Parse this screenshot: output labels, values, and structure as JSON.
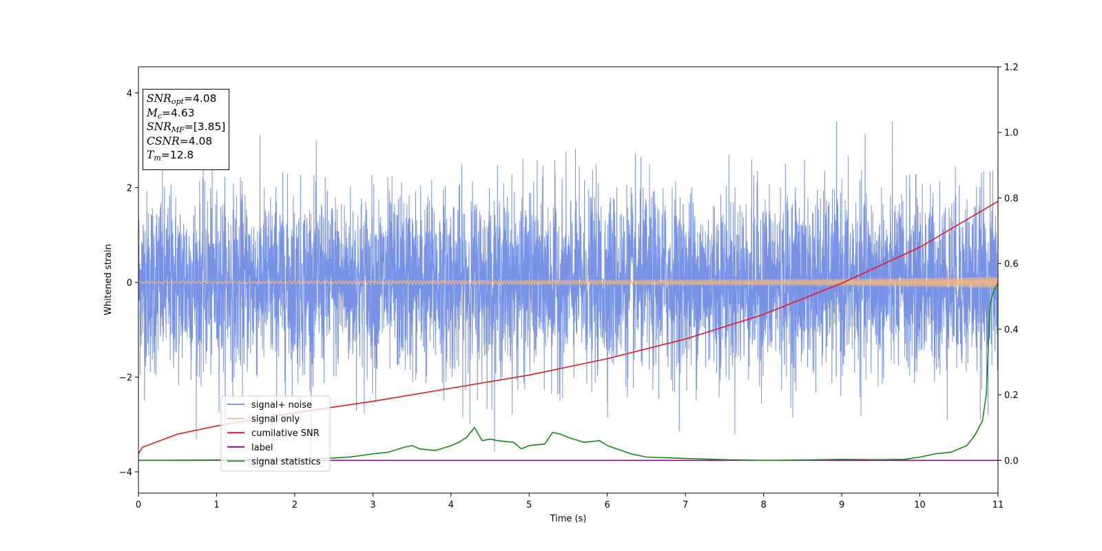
{
  "chart_data": {
    "type": "line",
    "xlabel": "Time (s)",
    "ylabel_left": "Whitened strain",
    "ylabel_right": "",
    "xlim": [
      0,
      11
    ],
    "ylim_left": [
      -4.45,
      4.55
    ],
    "ylim_right": [
      -0.1,
      1.2
    ],
    "xticks": [
      0,
      1,
      2,
      3,
      4,
      5,
      6,
      7,
      8,
      9,
      10,
      11
    ],
    "yticks_left": [
      -4,
      -2,
      0,
      2,
      4
    ],
    "yticks_right": [
      0.0,
      0.2,
      0.4,
      0.6,
      0.8,
      1.0,
      1.2
    ],
    "legend_position": "bottom-left",
    "series": [
      {
        "name": "signal+ noise",
        "axis": "left",
        "color": "#6c8ae4",
        "description_values": {
          "typical_range": [
            -2.5,
            2.5
          ],
          "max": 4.2,
          "min": -4.1
        }
      },
      {
        "name": "signal only",
        "axis": "left",
        "color": "#f5b97a",
        "x": [
          0,
          9,
          11
        ],
        "amplitude": [
          0.02,
          0.06,
          0.11
        ]
      },
      {
        "name": "cumilative SNR",
        "axis": "right",
        "color": "#e8171b",
        "x": [
          0,
          0.05,
          0.5,
          1,
          2,
          3,
          4,
          5,
          6,
          7,
          8,
          9,
          10,
          11
        ],
        "values": [
          0.02,
          0.04,
          0.08,
          0.105,
          0.145,
          0.18,
          0.22,
          0.26,
          0.31,
          0.37,
          0.445,
          0.54,
          0.65,
          0.79
        ]
      },
      {
        "name": "label",
        "axis": "right",
        "color": "#800080",
        "x": [
          0,
          11
        ],
        "values": [
          0.0,
          0.0
        ]
      },
      {
        "name": "signal statistics",
        "axis": "right",
        "color": "#138a13",
        "x": [
          0,
          1,
          2,
          2.5,
          2.7,
          3,
          3.2,
          3.4,
          3.5,
          3.6,
          3.8,
          4,
          4.1,
          4.2,
          4.3,
          4.4,
          4.5,
          4.6,
          4.8,
          4.9,
          5,
          5.2,
          5.3,
          5.4,
          5.5,
          5.7,
          5.9,
          6,
          6.3,
          6.5,
          7,
          7.5,
          8,
          8.5,
          9,
          9.5,
          9.8,
          10,
          10.2,
          10.4,
          10.6,
          10.7,
          10.8,
          10.85,
          10.9,
          10.95,
          11
        ],
        "values": [
          0.0,
          0.001,
          0.005,
          0.007,
          0.01,
          0.02,
          0.025,
          0.04,
          0.045,
          0.035,
          0.03,
          0.045,
          0.055,
          0.07,
          0.1,
          0.06,
          0.065,
          0.06,
          0.055,
          0.035,
          0.045,
          0.05,
          0.085,
          0.08,
          0.07,
          0.055,
          0.06,
          0.045,
          0.02,
          0.01,
          0.006,
          0.002,
          0.0,
          0.001,
          0.003,
          0.002,
          0.003,
          0.01,
          0.02,
          0.025,
          0.045,
          0.075,
          0.12,
          0.2,
          0.48,
          0.52,
          0.54
        ]
      }
    ]
  },
  "info_box": {
    "snr_opt_label": "SNR",
    "snr_opt_sub": "opt",
    "snr_opt_value": "=4.08",
    "mc_label": "M",
    "mc_sub": "c",
    "mc_value": "=4.63",
    "snr_mf_label": "SNR",
    "snr_mf_sub": "MF",
    "snr_mf_value": "=[3.85]",
    "csnr_label": "CSNR",
    "csnr_value": "=4.08",
    "tm_label": "T",
    "tm_sub": "m",
    "tm_value": "=12.8"
  }
}
